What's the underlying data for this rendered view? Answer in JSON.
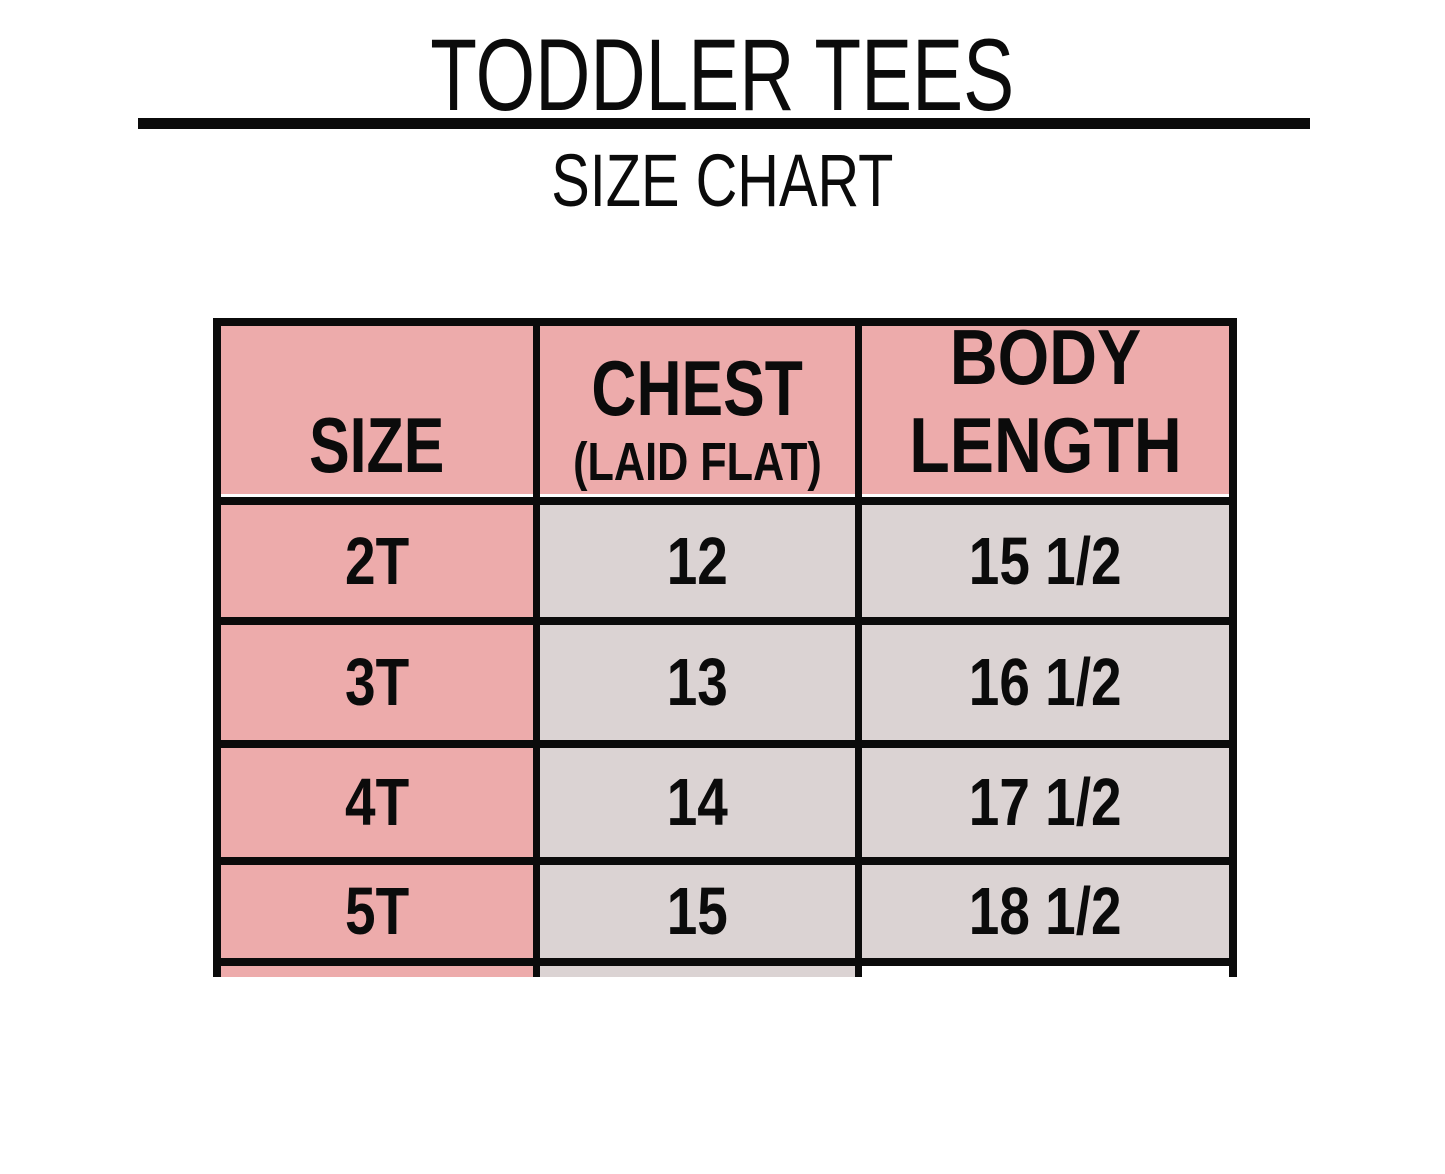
{
  "header": {
    "title": "TODDLER TEES",
    "subtitle": "SIZE CHART"
  },
  "chart_data": {
    "type": "table",
    "title": "TODDLER TEES",
    "subtitle": "SIZE CHART",
    "columns": [
      {
        "label": "SIZE"
      },
      {
        "label": "CHEST",
        "note": "(LAID FLAT)"
      },
      {
        "label": "BODY LENGTH"
      }
    ],
    "rows": [
      [
        "2T",
        "12",
        "15 1/2"
      ],
      [
        "3T",
        "13",
        "16 1/2"
      ],
      [
        "4T",
        "14",
        "17 1/2"
      ],
      [
        "5T",
        "15",
        "18 1/2"
      ]
    ]
  },
  "colors": {
    "header_fill": "#edabab",
    "size_column_fill": "#edabab",
    "data_cell_fill": "#dbd3d3",
    "border": "#000000",
    "background": "#ffffff"
  }
}
